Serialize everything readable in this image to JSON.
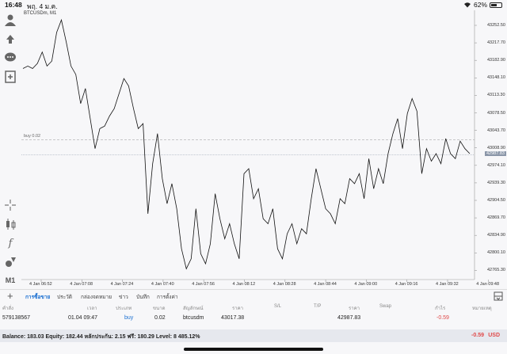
{
  "statusbar": {
    "time": "16:48",
    "date": "พฤ. 4 ม.ค.",
    "battery": "62%",
    "battery_level": 0.62
  },
  "chart": {
    "title": "BTCUSDm, M1",
    "buy_label": "buy 0.02",
    "current_price": "42987.83",
    "y_ticks": [
      "43252.50",
      "43217.70",
      "43182.90",
      "43148.10",
      "43113.30",
      "43078.50",
      "43043.70",
      "43008.90",
      "42974.10",
      "42939.30",
      "42904.50",
      "42869.70",
      "42834.90",
      "42800.10",
      "42765.30"
    ],
    "x_ticks": [
      "4 Jan 06:52",
      "4 Jan 07:08",
      "4 Jan 07:24",
      "4 Jan 07:40",
      "4 Jan 07:56",
      "4 Jan 08:12",
      "4 Jan 08:28",
      "4 Jan 08:44",
      "4 Jan 09:00",
      "4 Jan 09:16",
      "4 Jan 09:32",
      "4 Jan 09:48"
    ]
  },
  "tabs": [
    "การซื้อขาย",
    "ประวัติ",
    "กล่องจดหมาย",
    "ข่าว",
    "บันทึก",
    "การตั้งค่า"
  ],
  "table": {
    "headers": [
      "คำสั่ง",
      "เวลา",
      "ประเภท",
      "ขนาด",
      "สัญลักษณ์",
      "ราคา",
      "S/L",
      "T/P",
      "ราคา",
      "Swap",
      "กำไร",
      "หมายเหตุ"
    ],
    "row": [
      "579138567",
      "01.04 09:47",
      "buy",
      "0.02",
      "btcusdm",
      "43017.38",
      "",
      "",
      "42987.83",
      "",
      "-0.59",
      ""
    ]
  },
  "balance": {
    "text": "Balance: 183.03 Equity: 182.44 หลักประกัน: 2.15 ฟรี: 180.29 Level: 8 485.12%",
    "total": "-0.59",
    "currency": "USD"
  },
  "colors": {
    "accent": "#1a6fd1",
    "loss": "#e04848",
    "price_line": "#8a96a8"
  },
  "chart_data": {
    "type": "line",
    "title": "BTCUSDm, M1",
    "xlabel": "",
    "ylabel": "",
    "ylim": [
      42748,
      43270
    ],
    "x": [
      "06:52",
      "06:53",
      "06:54",
      "06:56",
      "06:58",
      "07:00",
      "07:02",
      "07:03",
      "07:05",
      "07:06",
      "07:08",
      "07:10",
      "07:11",
      "07:13",
      "07:14",
      "07:16",
      "07:18",
      "07:20",
      "07:21",
      "07:22",
      "07:24",
      "07:26",
      "07:28",
      "07:30",
      "07:32",
      "07:34",
      "07:35",
      "07:37",
      "07:38",
      "07:40",
      "07:42",
      "07:44",
      "07:46",
      "07:48",
      "07:50",
      "07:52",
      "07:54",
      "07:56",
      "07:58",
      "08:00",
      "08:02",
      "08:04",
      "08:06",
      "08:08",
      "08:10",
      "08:12",
      "08:14",
      "08:16",
      "08:18",
      "08:20",
      "08:22",
      "08:24",
      "08:26",
      "08:28",
      "08:30",
      "08:32",
      "08:34",
      "08:36",
      "08:38",
      "08:40",
      "08:42",
      "08:44",
      "08:46",
      "08:48",
      "08:50",
      "08:52",
      "08:54",
      "08:56",
      "08:58",
      "09:00",
      "09:02",
      "09:04",
      "09:06",
      "09:08",
      "09:10",
      "09:12",
      "09:14",
      "09:16",
      "09:18",
      "09:20",
      "09:22",
      "09:24",
      "09:26",
      "09:28",
      "09:30",
      "09:32",
      "09:34",
      "09:36",
      "09:38",
      "09:40",
      "09:42",
      "09:44",
      "09:46",
      "09:47"
    ],
    "values": [
      43160,
      43165,
      43160,
      43170,
      43193,
      43165,
      43175,
      43232,
      43257,
      43213,
      43165,
      43148,
      43090,
      43120,
      43060,
      43000,
      43040,
      43045,
      43065,
      43080,
      43110,
      43140,
      43125,
      43080,
      43040,
      43050,
      42870,
      42970,
      43030,
      42940,
      42890,
      42930,
      42880,
      42800,
      42760,
      42780,
      42880,
      42790,
      42770,
      42810,
      42910,
      42860,
      42820,
      42850,
      42810,
      42780,
      42950,
      42960,
      42900,
      42920,
      42860,
      42850,
      42880,
      42800,
      42780,
      42830,
      42850,
      42810,
      42840,
      42830,
      42900,
      42960,
      42920,
      42880,
      42870,
      42850,
      42900,
      42890,
      42940,
      42930,
      42950,
      42900,
      42980,
      42920,
      42960,
      42930,
      42990,
      43030,
      43060,
      43000,
      43070,
      43100,
      43075,
      42950,
      43000,
      42975,
      42990,
      42970,
      43020,
      42990,
      42980,
      43015,
      43000,
      42990
    ],
    "current_price": 42987.83,
    "buy_price": 43017.38,
    "grid": false
  }
}
